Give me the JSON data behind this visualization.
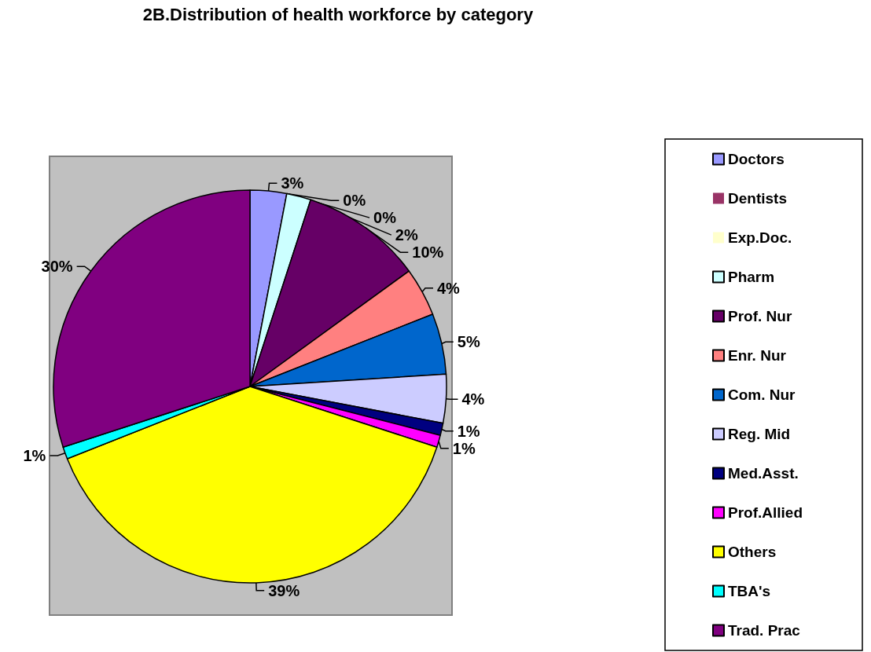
{
  "chart_data": {
    "type": "pie",
    "title": "2B.Distribution of health workforce by category",
    "categories": [
      "Doctors",
      "Dentists",
      "Exp.Doc.",
      "Pharm",
      "Prof. Nur",
      "Enr. Nur",
      "Com. Nur",
      "Reg. Mid",
      "Med.Asst.",
      "Prof.Allied",
      "Others",
      "TBA's",
      "Trad. Prac"
    ],
    "values": [
      3,
      0,
      0,
      2,
      10,
      4,
      5,
      4,
      1,
      1,
      39,
      1,
      30
    ],
    "colors": [
      "#9999ff",
      "#993366",
      "#ffffcc",
      "#ccffff",
      "#660066",
      "#ff8080",
      "#0066cc",
      "#ccccff",
      "#000080",
      "#ff00ff",
      "#ffff00",
      "#00ffff",
      "#800080"
    ],
    "value_labels": [
      "3%",
      "0%",
      "0%",
      "2%",
      "10%",
      "4%",
      "5%",
      "4%",
      "1%",
      "1%",
      "39%",
      "1%",
      "30%"
    ],
    "legend": "right"
  }
}
